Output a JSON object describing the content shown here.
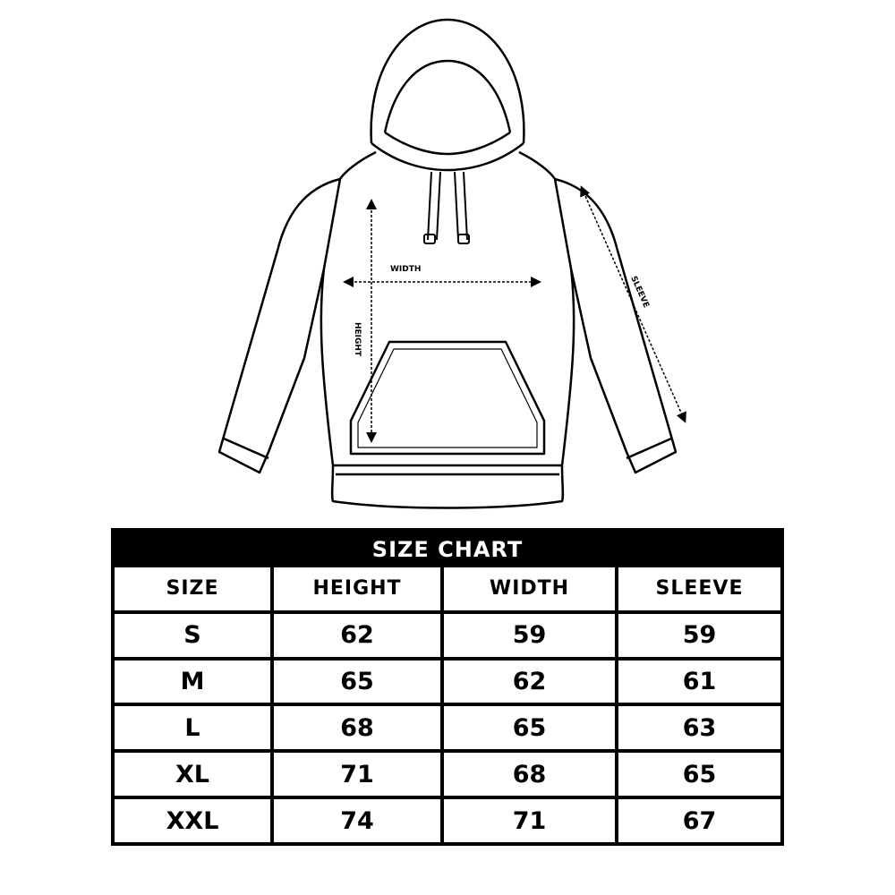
{
  "illustration": {
    "labels": {
      "width": "WIDTH",
      "height": "HEIGHT",
      "sleeve": "SLEEVE"
    }
  },
  "size_chart": {
    "title": "SIZE CHART",
    "headers": [
      "SIZE",
      "HEIGHT",
      "WIDTH",
      "SLEEVE"
    ],
    "rows": [
      [
        "S",
        "62",
        "59",
        "59"
      ],
      [
        "M",
        "65",
        "62",
        "61"
      ],
      [
        "L",
        "68",
        "65",
        "63"
      ],
      [
        "XL",
        "71",
        "68",
        "65"
      ],
      [
        "XXL",
        "74",
        "71",
        "67"
      ]
    ]
  }
}
